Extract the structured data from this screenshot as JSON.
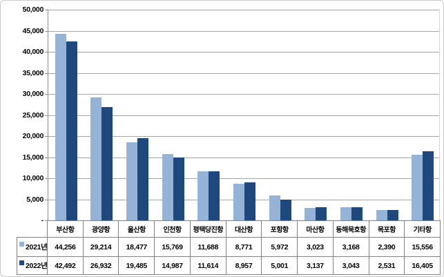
{
  "palette": {
    "series_2021": "#95B3D7",
    "series_2022": "#1F497D",
    "gridline": "#A6A6A6",
    "axis_line": "#8C8C8C",
    "table_border": "#808080",
    "frame_border": "#C9C9C9",
    "background": "#FFFFFF"
  },
  "chart_data": {
    "type": "bar",
    "title": "",
    "categories": [
      "부산항",
      "광양항",
      "울산항",
      "인천항",
      "평택당진항",
      "대산항",
      "포항항",
      "마산항",
      "동해묵호항",
      "목포항",
      "기타항"
    ],
    "series": [
      {
        "name": "2021년",
        "color": "#95B3D7",
        "values": [
          44256,
          29214,
          18477,
          15769,
          11688,
          8771,
          5972,
          3023,
          3168,
          2390,
          15556
        ]
      },
      {
        "name": "2022년",
        "color": "#1F497D",
        "values": [
          42492,
          26932,
          19485,
          14987,
          11614,
          8957,
          5001,
          3137,
          3043,
          2531,
          16405
        ]
      }
    ],
    "xlabel": "",
    "ylabel": "",
    "ylim": [
      0,
      50000
    ],
    "y_step": 5000,
    "y_tick_labels": [
      "50,000",
      "45,000",
      "40,000",
      "35,000",
      "30,000",
      "25,000",
      "20,000",
      "15,000",
      "10,000",
      "5,000",
      "-"
    ],
    "grid": true,
    "legend_position": "data-table-left",
    "data_table": {
      "rows": [
        {
          "label": "2021년",
          "marker_color": "#95B3D7",
          "values": [
            "44,256",
            "29,214",
            "18,477",
            "15,769",
            "11,688",
            "8,771",
            "5,972",
            "3,023",
            "3,168",
            "2,390",
            "15,556"
          ]
        },
        {
          "label": "2022년",
          "marker_color": "#1F497D",
          "values": [
            "42,492",
            "26,932",
            "19,485",
            "14,987",
            "11,614",
            "8,957",
            "5,001",
            "3,137",
            "3,043",
            "2,531",
            "16,405"
          ]
        }
      ]
    }
  }
}
